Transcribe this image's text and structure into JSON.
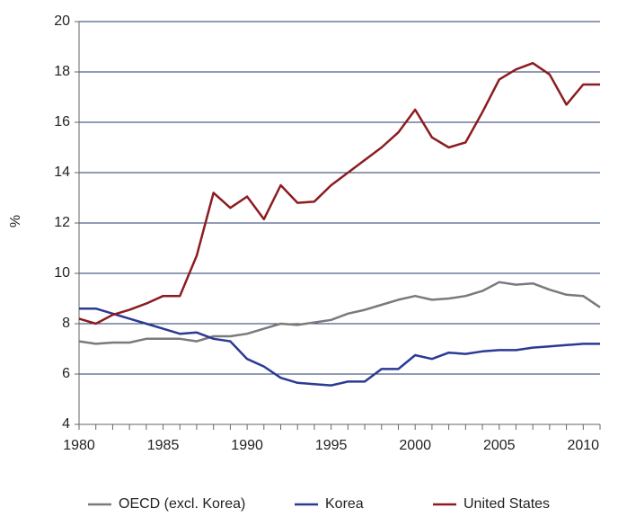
{
  "chart_data": {
    "type": "line",
    "ylabel": "%",
    "x": [
      1980,
      1981,
      1982,
      1983,
      1984,
      1985,
      1986,
      1987,
      1988,
      1989,
      1990,
      1991,
      1992,
      1993,
      1994,
      1995,
      1996,
      1997,
      1998,
      1999,
      2000,
      2001,
      2002,
      2003,
      2004,
      2005,
      2006,
      2007,
      2008,
      2009,
      2010,
      2011
    ],
    "series": [
      {
        "name": "OECD (excl. Korea)",
        "color": "#7a7a7a",
        "values": [
          7.3,
          7.2,
          7.25,
          7.25,
          7.4,
          7.4,
          7.4,
          7.3,
          7.5,
          7.5,
          7.6,
          7.8,
          8.0,
          7.95,
          8.05,
          8.15,
          8.4,
          8.55,
          8.75,
          8.95,
          9.1,
          8.95,
          9.0,
          9.1,
          9.3,
          9.65,
          9.55,
          9.6,
          9.35,
          9.15,
          9.1,
          8.65
        ]
      },
      {
        "name": "Korea",
        "color": "#2b3a94",
        "values": [
          8.6,
          8.6,
          8.4,
          8.2,
          8.0,
          7.8,
          7.6,
          7.65,
          7.4,
          7.3,
          6.6,
          6.3,
          5.85,
          5.65,
          5.6,
          5.55,
          5.7,
          5.7,
          6.2,
          6.2,
          6.75,
          6.6,
          6.85,
          6.8,
          6.9,
          6.95,
          6.95,
          7.05,
          7.1,
          7.15,
          7.2,
          7.2
        ]
      },
      {
        "name": "United States",
        "color": "#8b1c20",
        "values": [
          8.2,
          8.0,
          8.35,
          8.55,
          8.8,
          9.1,
          9.1,
          10.7,
          13.2,
          12.6,
          13.05,
          12.15,
          13.5,
          12.8,
          12.85,
          13.5,
          14.0,
          14.5,
          15.0,
          15.6,
          16.5,
          15.4,
          15.0,
          15.2,
          16.4,
          17.7,
          18.1,
          18.35,
          17.9,
          16.7,
          17.5,
          17.5
        ]
      }
    ],
    "xlim": [
      1980,
      2011
    ],
    "xticks": [
      1980,
      1985,
      1990,
      1995,
      2000,
      2005,
      2010
    ],
    "x_minor_ticks": [
      1980,
      1981,
      1982,
      1983,
      1984,
      1985,
      1986,
      1987,
      1988,
      1989,
      1990,
      1991,
      1992,
      1993,
      1994,
      1995,
      1996,
      1997,
      1998,
      1999,
      2000,
      2001,
      2002,
      2003,
      2004,
      2005,
      2006,
      2007,
      2008,
      2009,
      2010,
      2011
    ],
    "ylim": [
      4,
      20
    ],
    "yticks": [
      4,
      6,
      8,
      10,
      12,
      14,
      16,
      18,
      20
    ],
    "grid": true,
    "grid_color": "#1f3a6a",
    "legend": "bottom"
  }
}
